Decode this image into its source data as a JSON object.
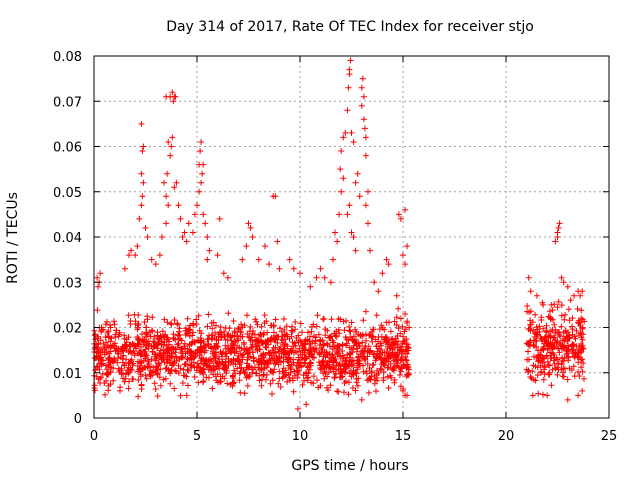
{
  "chart_data": {
    "type": "scatter",
    "title": "Day 314 of 2017, Rate Of TEC Index for receiver stjo",
    "xlabel": "GPS time / hours",
    "ylabel": "ROTI / TECUs",
    "xlim": [
      0,
      25
    ],
    "ylim": [
      0,
      0.08
    ],
    "x_ticks": [
      0,
      5,
      10,
      15,
      20,
      25
    ],
    "x_tick_labels": [
      "0",
      "5",
      "10",
      "15",
      "20",
      "25"
    ],
    "y_ticks": [
      0,
      0.01,
      0.02,
      0.03,
      0.04,
      0.05,
      0.06,
      0.07,
      0.08
    ],
    "y_tick_labels": [
      "0",
      "0.01",
      "0.02",
      "0.03",
      "0.04",
      "0.05",
      "0.06",
      "0.07",
      "0.08"
    ],
    "grid": true,
    "marker": "plus",
    "color": "#ff0000",
    "series": [
      {
        "name": "ROTI",
        "dense_segments": [
          {
            "x_range": [
              0.0,
              15.3
            ],
            "y_range": [
              0.003,
              0.025
            ],
            "density": "very high"
          },
          {
            "x_range": [
              21.0,
              23.8
            ],
            "y_range": [
              0.004,
              0.028
            ],
            "density": "very high"
          }
        ],
        "points": [
          [
            0.15,
            0.031
          ],
          [
            0.25,
            0.03
          ],
          [
            0.3,
            0.032
          ],
          [
            0.2,
            0.029
          ],
          [
            1.5,
            0.033
          ],
          [
            1.7,
            0.036
          ],
          [
            1.8,
            0.037
          ],
          [
            2.0,
            0.036
          ],
          [
            2.1,
            0.038
          ],
          [
            2.2,
            0.044
          ],
          [
            2.3,
            0.047
          ],
          [
            2.3,
            0.065
          ],
          [
            2.4,
            0.06
          ],
          [
            2.35,
            0.059
          ],
          [
            2.3,
            0.054
          ],
          [
            2.4,
            0.052
          ],
          [
            2.35,
            0.049
          ],
          [
            2.5,
            0.042
          ],
          [
            2.6,
            0.04
          ],
          [
            2.8,
            0.035
          ],
          [
            3.0,
            0.034
          ],
          [
            3.2,
            0.036
          ],
          [
            3.3,
            0.04
          ],
          [
            3.5,
            0.043
          ],
          [
            3.4,
            0.052
          ],
          [
            3.5,
            0.049
          ],
          [
            3.6,
            0.047
          ],
          [
            3.55,
            0.054
          ],
          [
            3.7,
            0.058
          ],
          [
            3.6,
            0.061
          ],
          [
            3.8,
            0.062
          ],
          [
            3.75,
            0.06
          ],
          [
            3.5,
            0.071
          ],
          [
            3.7,
            0.071
          ],
          [
            3.8,
            0.072
          ],
          [
            3.9,
            0.071
          ],
          [
            3.85,
            0.07
          ],
          [
            3.95,
            0.071
          ],
          [
            4.0,
            0.052
          ],
          [
            3.9,
            0.051
          ],
          [
            4.1,
            0.047
          ],
          [
            4.2,
            0.044
          ],
          [
            4.3,
            0.04
          ],
          [
            4.4,
            0.041
          ],
          [
            4.5,
            0.039
          ],
          [
            4.6,
            0.043
          ],
          [
            4.8,
            0.041
          ],
          [
            4.9,
            0.045
          ],
          [
            5.0,
            0.047
          ],
          [
            5.1,
            0.05
          ],
          [
            5.2,
            0.052
          ],
          [
            5.1,
            0.056
          ],
          [
            5.2,
            0.061
          ],
          [
            5.15,
            0.059
          ],
          [
            5.3,
            0.056
          ],
          [
            5.25,
            0.054
          ],
          [
            5.3,
            0.045
          ],
          [
            5.4,
            0.043
          ],
          [
            5.5,
            0.04
          ],
          [
            5.6,
            0.037
          ],
          [
            5.5,
            0.035
          ],
          [
            6.1,
            0.044
          ],
          [
            6.0,
            0.036
          ],
          [
            6.3,
            0.032
          ],
          [
            6.5,
            0.031
          ],
          [
            7.5,
            0.043
          ],
          [
            7.6,
            0.042
          ],
          [
            7.7,
            0.04
          ],
          [
            7.4,
            0.038
          ],
          [
            7.2,
            0.035
          ],
          [
            8.0,
            0.035
          ],
          [
            8.3,
            0.038
          ],
          [
            8.5,
            0.034
          ],
          [
            8.7,
            0.049
          ],
          [
            8.8,
            0.049
          ],
          [
            8.9,
            0.039
          ],
          [
            9.0,
            0.033
          ],
          [
            9.5,
            0.035
          ],
          [
            9.7,
            0.033
          ],
          [
            10.0,
            0.032
          ],
          [
            10.5,
            0.029
          ],
          [
            10.8,
            0.031
          ],
          [
            11.0,
            0.033
          ],
          [
            11.2,
            0.031
          ],
          [
            11.5,
            0.03
          ],
          [
            11.6,
            0.035
          ],
          [
            11.7,
            0.041
          ],
          [
            11.8,
            0.039
          ],
          [
            11.9,
            0.045
          ],
          [
            12.0,
            0.05
          ],
          [
            11.95,
            0.055
          ],
          [
            12.1,
            0.053
          ],
          [
            12.0,
            0.059
          ],
          [
            12.1,
            0.062
          ],
          [
            12.3,
            0.045
          ],
          [
            12.4,
            0.047
          ],
          [
            12.5,
            0.041
          ],
          [
            12.6,
            0.04
          ],
          [
            12.7,
            0.037
          ],
          [
            12.2,
            0.063
          ],
          [
            12.3,
            0.068
          ],
          [
            12.35,
            0.073
          ],
          [
            12.4,
            0.076
          ],
          [
            12.45,
            0.079
          ],
          [
            12.4,
            0.077
          ],
          [
            12.5,
            0.063
          ],
          [
            12.6,
            0.061
          ],
          [
            12.7,
            0.052
          ],
          [
            12.8,
            0.054
          ],
          [
            12.9,
            0.049
          ],
          [
            13.0,
            0.073
          ],
          [
            13.05,
            0.075
          ],
          [
            13.1,
            0.071
          ],
          [
            13.0,
            0.069
          ],
          [
            13.1,
            0.066
          ],
          [
            13.2,
            0.062
          ],
          [
            13.15,
            0.064
          ],
          [
            13.2,
            0.058
          ],
          [
            13.3,
            0.05
          ],
          [
            13.2,
            0.047
          ],
          [
            13.3,
            0.043
          ],
          [
            13.4,
            0.037
          ],
          [
            13.6,
            0.03
          ],
          [
            13.8,
            0.028
          ],
          [
            14.0,
            0.032
          ],
          [
            14.2,
            0.035
          ],
          [
            14.3,
            0.034
          ],
          [
            14.8,
            0.045
          ],
          [
            14.9,
            0.044
          ],
          [
            15.1,
            0.046
          ],
          [
            15.0,
            0.036
          ],
          [
            15.2,
            0.038
          ],
          [
            15.1,
            0.034
          ],
          [
            14.7,
            0.027
          ],
          [
            14.9,
            0.022
          ],
          [
            15.0,
            0.018
          ],
          [
            15.2,
            0.021
          ],
          [
            15.3,
            0.02
          ],
          [
            14.9,
            0.007
          ],
          [
            15.0,
            0.006
          ],
          [
            15.1,
            0.005
          ],
          [
            15.2,
            0.005
          ],
          [
            4.5,
            0.005
          ],
          [
            9.9,
            0.002
          ],
          [
            10.3,
            0.003
          ],
          [
            13.0,
            0.004
          ],
          [
            21.1,
            0.031
          ],
          [
            21.2,
            0.028
          ],
          [
            21.5,
            0.027
          ],
          [
            21.8,
            0.025
          ],
          [
            22.2,
            0.025
          ],
          [
            22.4,
            0.039
          ],
          [
            22.5,
            0.04
          ],
          [
            22.55,
            0.042
          ],
          [
            22.6,
            0.043
          ],
          [
            22.5,
            0.041
          ],
          [
            22.7,
            0.031
          ],
          [
            22.8,
            0.03
          ],
          [
            23.0,
            0.029
          ],
          [
            23.3,
            0.027
          ],
          [
            23.5,
            0.028
          ],
          [
            23.6,
            0.027
          ],
          [
            23.7,
            0.028
          ],
          [
            21.3,
            0.005
          ],
          [
            22.0,
            0.005
          ],
          [
            23.0,
            0.004
          ],
          [
            23.5,
            0.005
          ],
          [
            23.7,
            0.006
          ]
        ]
      }
    ]
  }
}
